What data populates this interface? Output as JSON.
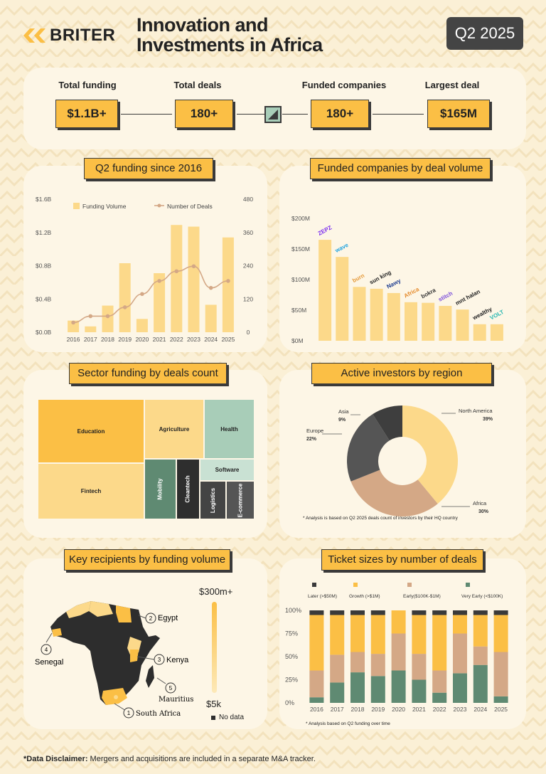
{
  "header": {
    "brand": "BRITER",
    "title_line1": "Innovation and",
    "title_line2": "Investments in Africa",
    "period": "Q2 2025"
  },
  "stats": [
    {
      "label": "Total funding",
      "value": "$1.1B+"
    },
    {
      "label": "Total deals",
      "value": "180+"
    },
    {
      "label": "Funded companies",
      "value": "180+"
    },
    {
      "label": "Largest deal",
      "value": "$165M"
    }
  ],
  "colors": {
    "yellow": "#fbbf45",
    "light_yellow": "#fcd98a",
    "tan": "#d4a886",
    "dark": "#3a3a3a",
    "green": "#5f8a72",
    "mint": "#a8cdb8",
    "gray": "#555555"
  },
  "panels": {
    "funding_since_2016": "Q2 funding since 2016",
    "funded_companies": "Funded companies by deal volume",
    "sector_funding": "Sector funding by deals count",
    "active_investors": "Active investors by region",
    "key_recipients": "Key recipients by funding volume",
    "ticket_sizes": "Ticket sizes by number of deals"
  },
  "chart_data": [
    {
      "type": "bar",
      "title": "Q2 funding since 2016",
      "categories": [
        "2016",
        "2017",
        "2018",
        "2019",
        "2020",
        "2021",
        "2022",
        "2023",
        "2024",
        "2025"
      ],
      "series": [
        {
          "name": "Funding Volume",
          "values": [
            0.14,
            0.07,
            0.32,
            0.83,
            0.16,
            0.71,
            1.29,
            1.27,
            0.33,
            1.14
          ],
          "unit": "$B"
        },
        {
          "name": "Number of Deals",
          "values": [
            35,
            58,
            58,
            90,
            138,
            185,
            220,
            238,
            160,
            185
          ]
        }
      ],
      "y_ticks": [
        "$0.0B",
        "$0.4B",
        "$0.8B",
        "$1.2B",
        "$1.6B"
      ],
      "y2_ticks": [
        "0",
        "120",
        "240",
        "360",
        "480"
      ],
      "ylim": [
        0,
        1.6
      ],
      "y2lim": [
        0,
        480
      ],
      "legend": "top"
    },
    {
      "type": "bar",
      "title": "Funded companies by deal volume",
      "categories": [
        "ZEPZ",
        "wave",
        "burn",
        "sun king",
        "Nawy",
        "Africa",
        "bokra",
        "stitch",
        "mnt halan",
        "wealthy",
        "VOLT"
      ],
      "values": [
        165,
        137,
        88,
        85,
        78,
        63,
        62,
        57,
        51,
        27,
        27
      ],
      "y_ticks": [
        "$0M",
        "$50M",
        "$100M",
        "$150M",
        "$200M"
      ],
      "ylim": [
        0,
        200
      ]
    },
    {
      "type": "heatmap",
      "title": "Sector funding by deals count",
      "cells": [
        "Education",
        "Fintech",
        "Agriculture",
        "Health",
        "Software",
        "Mobility",
        "Cleantech",
        "Logistics",
        "E-commerce"
      ]
    },
    {
      "type": "pie",
      "title": "Active investors by region",
      "slices": [
        {
          "label": "North America",
          "value": 39,
          "text": "39%"
        },
        {
          "label": "Africa",
          "value": 30,
          "text": "30%"
        },
        {
          "label": "Europe",
          "value": 22,
          "text": "22%"
        },
        {
          "label": "Asia",
          "value": 9,
          "text": "9%"
        }
      ],
      "note": "* Analysis is based on Q2 2025 deals count of investors by their HQ country"
    },
    {
      "type": "bar",
      "title": "Ticket sizes by number of deals",
      "categories": [
        "2016",
        "2017",
        "2018",
        "2019",
        "2020",
        "2021",
        "2022",
        "2023",
        "2024",
        "2025"
      ],
      "series": [
        {
          "name": "Very Early (<$100K)",
          "values": [
            6,
            22,
            33,
            29,
            35,
            25,
            11,
            32,
            41,
            7
          ]
        },
        {
          "name": "Early($100K-$1M)",
          "values": [
            29,
            30,
            22,
            24,
            40,
            28,
            24,
            43,
            20,
            48
          ]
        },
        {
          "name": "Growth (>$1M)",
          "values": [
            60,
            43,
            40,
            42,
            25,
            42,
            60,
            20,
            34,
            40
          ]
        },
        {
          "name": "Later (>$50M)",
          "values": [
            5,
            5,
            5,
            5,
            0,
            5,
            5,
            5,
            5,
            5
          ]
        }
      ],
      "y_ticks": [
        "0%",
        "25%",
        "50%",
        "75%",
        "100%"
      ],
      "ylim": [
        0,
        100
      ],
      "note": "* Analysis based on Q2 funding over time"
    }
  ],
  "map": {
    "legend_max": "$300m+",
    "legend_min": "$5k",
    "no_data": "No data",
    "labels": [
      {
        "num": "2",
        "name": "Egypt"
      },
      {
        "num": "3",
        "name": "Kenya"
      },
      {
        "num": "4",
        "name": "Senegal"
      },
      {
        "num": "5",
        "name": "Mauritius"
      },
      {
        "num": "1",
        "name": "South Africa"
      }
    ]
  },
  "footer": {
    "bold": "*Data Disclaimer:",
    "text": " Mergers and acquisitions are included in a separate M&A tracker."
  }
}
